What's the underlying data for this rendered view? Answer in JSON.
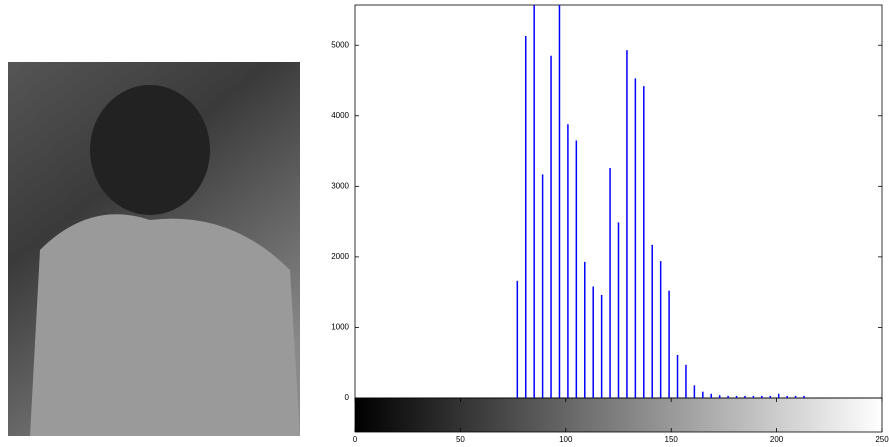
{
  "chart_data": {
    "type": "stem",
    "x": [
      77,
      81,
      85,
      89,
      93,
      97,
      101,
      105,
      109,
      113,
      117,
      121,
      125,
      129,
      133,
      137,
      141,
      145,
      149,
      153,
      157,
      161,
      165,
      169,
      173,
      177,
      181,
      185,
      189,
      193,
      197,
      201,
      205,
      209,
      213
    ],
    "values": [
      1660,
      5130,
      5800,
      3170,
      4850,
      5800,
      3880,
      3650,
      1930,
      1580,
      1460,
      3260,
      2490,
      4930,
      4530,
      4420,
      2170,
      1940,
      1520,
      610,
      470,
      180,
      90,
      60,
      40,
      30,
      30,
      30,
      30,
      30,
      30,
      60,
      30,
      30,
      30
    ],
    "color": "#0000ff",
    "xlim": [
      0,
      250
    ],
    "xticks": [
      0,
      50,
      100,
      150,
      200,
      250
    ],
    "ylim": [
      0,
      5570
    ],
    "yticks": [
      0,
      1000,
      2000,
      3000,
      4000,
      5000
    ]
  }
}
